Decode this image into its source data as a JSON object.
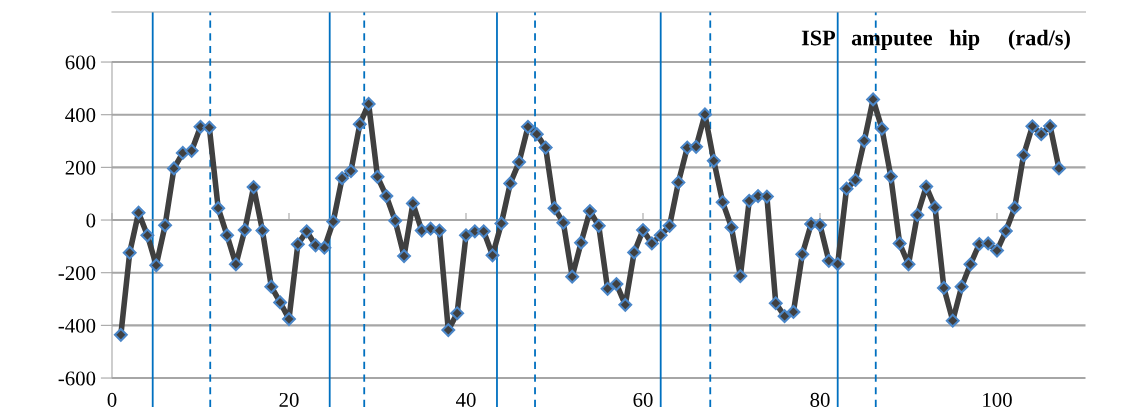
{
  "chart_data": {
    "type": "line",
    "title": "ISP   amputee   hip     (rad/s)",
    "x": [
      1,
      2,
      3,
      4,
      5,
      6,
      7,
      8,
      9,
      10,
      11,
      12,
      13,
      14,
      15,
      16,
      17,
      18,
      19,
      20,
      21,
      22,
      23,
      24,
      25,
      26,
      27,
      28,
      29,
      30,
      31,
      32,
      33,
      34,
      35,
      36,
      37,
      38,
      39,
      40,
      41,
      42,
      43,
      44,
      45,
      46,
      47,
      48,
      49,
      50,
      51,
      52,
      53,
      54,
      55,
      56,
      57,
      58,
      59,
      60,
      61,
      62,
      63,
      64,
      65,
      66,
      67,
      68,
      69,
      70,
      71,
      72,
      73,
      74,
      75,
      76,
      77,
      78,
      79,
      80,
      81,
      82,
      83,
      84,
      85,
      86,
      87,
      88,
      89,
      90,
      91,
      92,
      93,
      94,
      95,
      96,
      97,
      98,
      99,
      100,
      101,
      102,
      103,
      104,
      105,
      106,
      107
    ],
    "series": [
      {
        "color": "#404040",
        "values": [
          -436,
          -124,
          28,
          -58,
          -172,
          -20,
          196,
          255,
          263,
          354,
          351,
          45,
          -58,
          -168,
          -38,
          125,
          -40,
          -253,
          -313,
          -376,
          -92,
          -43,
          -96,
          -105,
          -6,
          159,
          186,
          364,
          441,
          164,
          91,
          -3,
          -137,
          63,
          -40,
          -33,
          -40,
          -418,
          -354,
          -58,
          -43,
          -43,
          -134,
          -13,
          139,
          220,
          354,
          326,
          275,
          45,
          -10,
          -215,
          -86,
          34,
          -22,
          -261,
          -243,
          -322,
          -123,
          -38,
          -89,
          -58,
          -22,
          143,
          275,
          278,
          401,
          225,
          68,
          -28,
          -213,
          73,
          91,
          89,
          -316,
          -365,
          -349,
          -130,
          -15,
          -19,
          -155,
          -167,
          119,
          152,
          301,
          458,
          347,
          165,
          -89,
          -168,
          19,
          127,
          48,
          -258,
          -382,
          -253,
          -168,
          -91,
          -89,
          -116,
          -42,
          47,
          246,
          356,
          326,
          357,
          196
        ]
      }
    ],
    "xlim": [
      0,
      110
    ],
    "xticks": [
      0,
      20,
      40,
      60,
      80,
      100
    ],
    "ylim": [
      -710,
      790
    ],
    "yticks": [
      -600,
      -400,
      -200,
      0,
      200,
      400,
      600
    ],
    "grid": "y",
    "marker": "diamond",
    "line_style": "solid",
    "ref_lines": [
      {
        "axis": "x",
        "value": 4.6,
        "color": "#0070c0",
        "line_style": "solid"
      },
      {
        "axis": "x",
        "value": 11.1,
        "color": "#0070c0",
        "line_style": "dashed"
      },
      {
        "axis": "x",
        "value": 24.6,
        "color": "#0070c0",
        "line_style": "solid"
      },
      {
        "axis": "x",
        "value": 28.5,
        "color": "#0070c0",
        "line_style": "dashed"
      },
      {
        "axis": "x",
        "value": 43.5,
        "color": "#0070c0",
        "line_style": "solid"
      },
      {
        "axis": "x",
        "value": 47.8,
        "color": "#0070c0",
        "line_style": "dashed"
      },
      {
        "axis": "x",
        "value": 62.0,
        "color": "#0070c0",
        "line_style": "solid"
      },
      {
        "axis": "x",
        "value": 67.6,
        "color": "#0070c0",
        "line_style": "dashed"
      },
      {
        "axis": "x",
        "value": 82.0,
        "color": "#0070c0",
        "line_style": "solid"
      },
      {
        "axis": "x",
        "value": 86.3,
        "color": "#0070c0",
        "line_style": "dashed"
      }
    ]
  }
}
